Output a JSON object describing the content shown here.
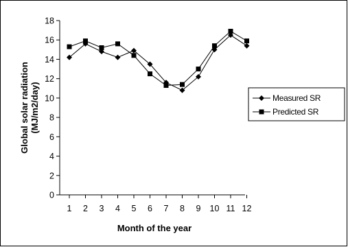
{
  "chart_data": {
    "type": "line",
    "title": "",
    "xlabel": "Month of the year",
    "ylabel": [
      "Global solar radiation",
      "(MJ/m2/day)"
    ],
    "categories": [
      "1",
      "2",
      "3",
      "4",
      "5",
      "6",
      "7",
      "8",
      "9",
      "10",
      "11",
      "12"
    ],
    "ylim": [
      0,
      18
    ],
    "yticks": [
      "0",
      "2",
      "4",
      "6",
      "8",
      "10",
      "12",
      "14",
      "16",
      "18"
    ],
    "grid": false,
    "legend_position": "right",
    "series": [
      {
        "name": "Measured SR",
        "marker": "diamond",
        "values": [
          14.2,
          15.6,
          14.8,
          14.2,
          14.9,
          13.5,
          11.6,
          10.8,
          12.2,
          15.0,
          16.5,
          15.4
        ]
      },
      {
        "name": "Predicted SR",
        "marker": "square",
        "values": [
          15.3,
          15.9,
          15.2,
          15.6,
          14.4,
          12.5,
          11.3,
          11.4,
          13.0,
          15.4,
          16.9,
          15.9
        ]
      }
    ],
    "colors": {
      "line": "#000000",
      "background": "#ffffff"
    }
  }
}
